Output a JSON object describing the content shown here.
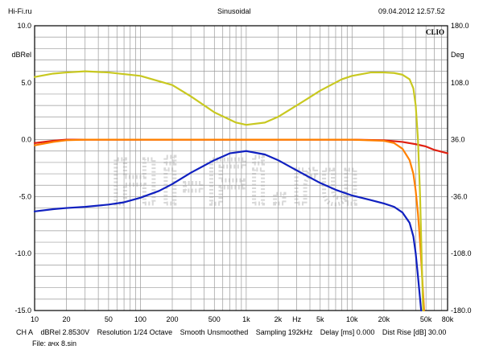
{
  "header": {
    "left": "Hi-Fi.ru",
    "center": "Sinusoidal",
    "right": "09.04.2012 12.57.52",
    "brand": "CLIO"
  },
  "watermark": "Hi-Fi.ru",
  "footer": {
    "line1": [
      "CH A",
      "dBRel 2.8530V",
      "Resolution 1/24 Octave",
      "Smooth Unsmoothed",
      "Sampling 192kHz",
      "Delay [ms] 0.000",
      "Dist Rise [dB] 30.00"
    ],
    "line2": "File: ачх 8.sin"
  },
  "chart_data": {
    "type": "line",
    "x_scale": "log",
    "xlim": [
      10,
      80000
    ],
    "ylim_left": [
      -15,
      10
    ],
    "ylim_right": [
      -180,
      180
    ],
    "ylabel_left": "dBRel",
    "ylabel_right": "Deg",
    "x_tick_labels": [
      {
        "x": 10,
        "label": "10"
      },
      {
        "x": 20,
        "label": "20"
      },
      {
        "x": 50,
        "label": "50"
      },
      {
        "x": 100,
        "label": "100"
      },
      {
        "x": 200,
        "label": "200"
      },
      {
        "x": 500,
        "label": "500"
      },
      {
        "x": 1000,
        "label": "1k"
      },
      {
        "x": 2000,
        "label": "2k"
      },
      {
        "x": 3000,
        "label": "Hz"
      },
      {
        "x": 5000,
        "label": "5k"
      },
      {
        "x": 10000,
        "label": "10k"
      },
      {
        "x": 20000,
        "label": "20k"
      },
      {
        "x": 50000,
        "label": "50k"
      },
      {
        "x": 80000,
        "label": "80k"
      }
    ],
    "y_left_ticks": [
      {
        "v": 10,
        "label": "10.0"
      },
      {
        "v": 5,
        "label": "5.0"
      },
      {
        "v": 0,
        "label": "0.0"
      },
      {
        "v": -5,
        "label": "-5.0"
      },
      {
        "v": -10,
        "label": "-10.0"
      },
      {
        "v": -15,
        "label": "-15.0"
      }
    ],
    "y_right_ticks": [
      {
        "v": 180,
        "label": "180.0"
      },
      {
        "v": 108,
        "label": "108.0"
      },
      {
        "v": 36,
        "label": "36.0"
      },
      {
        "v": -36,
        "label": "-36.0"
      },
      {
        "v": -108,
        "label": "-108.0"
      },
      {
        "v": -180,
        "label": "-180.0"
      }
    ],
    "grid": true,
    "series": [
      {
        "color": "#e02010",
        "axis": "left",
        "points": [
          [
            10,
            -0.3
          ],
          [
            15,
            -0.1
          ],
          [
            20,
            0
          ],
          [
            100,
            0
          ],
          [
            1000,
            0
          ],
          [
            10000,
            0
          ],
          [
            20000,
            -0.05
          ],
          [
            30000,
            -0.2
          ],
          [
            40000,
            -0.4
          ],
          [
            50000,
            -0.6
          ],
          [
            60000,
            -0.9
          ],
          [
            80000,
            -1.2
          ]
        ]
      },
      {
        "color": "#ff8000",
        "axis": "left",
        "points": [
          [
            10,
            -0.5
          ],
          [
            15,
            -0.2
          ],
          [
            20,
            -0.05
          ],
          [
            30,
            0
          ],
          [
            100,
            0
          ],
          [
            1000,
            0
          ],
          [
            10000,
            0
          ],
          [
            20000,
            -0.1
          ],
          [
            25000,
            -0.3
          ],
          [
            30000,
            -0.8
          ],
          [
            35000,
            -1.8
          ],
          [
            38000,
            -3
          ],
          [
            40000,
            -4.5
          ],
          [
            42000,
            -6.5
          ],
          [
            44000,
            -9
          ],
          [
            46000,
            -12
          ],
          [
            48000,
            -15
          ]
        ]
      },
      {
        "color": "#c8c820",
        "axis": "left",
        "points": [
          [
            10,
            5.5
          ],
          [
            15,
            5.8
          ],
          [
            20,
            5.9
          ],
          [
            30,
            6.0
          ],
          [
            50,
            5.9
          ],
          [
            100,
            5.6
          ],
          [
            200,
            4.8
          ],
          [
            300,
            3.8
          ],
          [
            500,
            2.4
          ],
          [
            800,
            1.5
          ],
          [
            1000,
            1.3
          ],
          [
            1500,
            1.5
          ],
          [
            2000,
            2.0
          ],
          [
            3000,
            3.0
          ],
          [
            5000,
            4.3
          ],
          [
            8000,
            5.3
          ],
          [
            10000,
            5.6
          ],
          [
            15000,
            5.9
          ],
          [
            20000,
            5.9
          ],
          [
            25000,
            5.85
          ],
          [
            30000,
            5.7
          ],
          [
            35000,
            5.3
          ],
          [
            38000,
            4.5
          ],
          [
            40000,
            3.0
          ],
          [
            42000,
            0
          ],
          [
            44000,
            -5
          ],
          [
            46000,
            -12
          ],
          [
            47000,
            -15
          ]
        ]
      },
      {
        "color": "#1020c0",
        "axis": "left",
        "points": [
          [
            10,
            -6.3
          ],
          [
            15,
            -6.1
          ],
          [
            20,
            -6.0
          ],
          [
            30,
            -5.9
          ],
          [
            50,
            -5.7
          ],
          [
            70,
            -5.5
          ],
          [
            100,
            -5.1
          ],
          [
            150,
            -4.5
          ],
          [
            200,
            -3.9
          ],
          [
            300,
            -2.9
          ],
          [
            500,
            -1.8
          ],
          [
            700,
            -1.2
          ],
          [
            1000,
            -1.0
          ],
          [
            1500,
            -1.3
          ],
          [
            2000,
            -1.8
          ],
          [
            3000,
            -2.7
          ],
          [
            5000,
            -3.8
          ],
          [
            7000,
            -4.4
          ],
          [
            10000,
            -4.9
          ],
          [
            15000,
            -5.3
          ],
          [
            20000,
            -5.6
          ],
          [
            25000,
            -5.9
          ],
          [
            30000,
            -6.4
          ],
          [
            35000,
            -7.3
          ],
          [
            38000,
            -8.5
          ],
          [
            40000,
            -10.0
          ],
          [
            42000,
            -12.0
          ],
          [
            44000,
            -14.0
          ],
          [
            45000,
            -15
          ]
        ]
      }
    ]
  }
}
